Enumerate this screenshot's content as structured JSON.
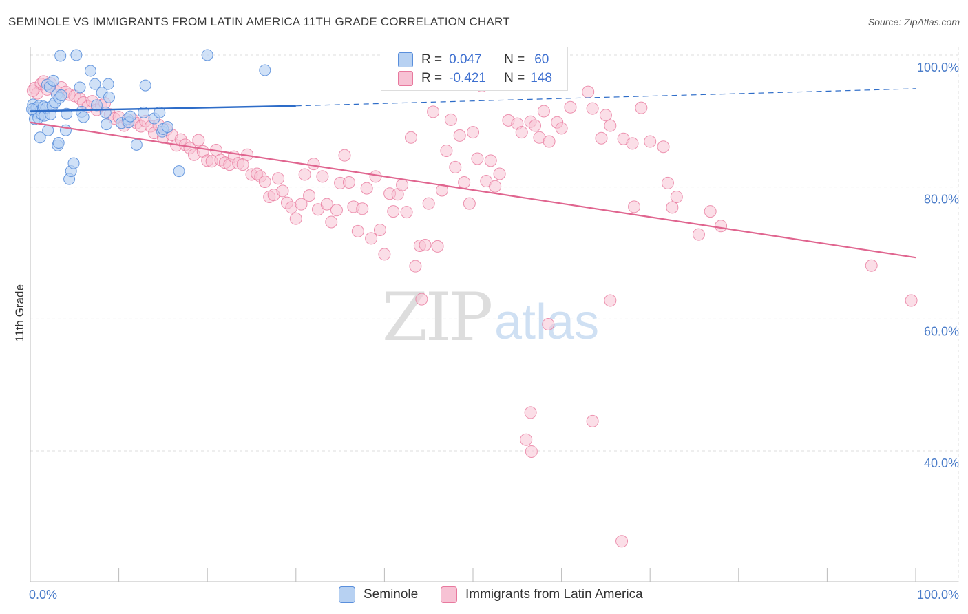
{
  "header": {
    "title": "SEMINOLE VS IMMIGRANTS FROM LATIN AMERICA 11TH GRADE CORRELATION CHART",
    "source": "Source: ZipAtlas.com"
  },
  "watermark": {
    "zip": "ZIP",
    "atlas": "atlas"
  },
  "legend": {
    "r_label": "R =",
    "n_label": "N =",
    "rows": [
      {
        "r": "0.047",
        "n": "60"
      },
      {
        "r": "-0.421",
        "n": "148"
      }
    ]
  },
  "colors": {
    "seminole_fill": "#b7d1f2",
    "seminole_stroke": "#5a8fdc",
    "seminole_line": "#2d6cc8",
    "latin_fill": "#f7c2d4",
    "latin_stroke": "#e8799e",
    "latin_line": "#e0658f",
    "grid": "#dddddd",
    "tick_text": "#4a7cc9"
  },
  "chart_data": {
    "type": "scatter",
    "title": "SEMINOLE VS IMMIGRANTS FROM LATIN AMERICA 11TH GRADE CORRELATION CHART",
    "xlabel": "",
    "ylabel": "11th Grade",
    "xlim": [
      0,
      100
    ],
    "ylim": [
      20,
      100
    ],
    "x_tick_labels": [
      "0.0%",
      "100.0%"
    ],
    "y_ticks": [
      100,
      80,
      60,
      40
    ],
    "y_tick_labels": [
      "100.0%",
      "80.0%",
      "60.0%",
      "40.0%"
    ],
    "legend_position": "top-center",
    "series": [
      {
        "name": "Seminole",
        "r": 0.047,
        "n": 60,
        "trend": {
          "x0": 0,
          "y0": 91.5,
          "x1": 30,
          "y1": 92.3,
          "dash_to_x": 100,
          "dash_to_y": 94.9
        },
        "points": [
          [
            0.3,
            92.5
          ],
          [
            0.4,
            91.5
          ],
          [
            0.5,
            90.3
          ],
          [
            0.6,
            91.8
          ],
          [
            0.7,
            92.0
          ],
          [
            0.8,
            91.2
          ],
          [
            0.9,
            90.5
          ],
          [
            1.0,
            92.3
          ],
          [
            1.1,
            87.5
          ],
          [
            1.2,
            91.6
          ],
          [
            1.3,
            91.0
          ],
          [
            1.5,
            92.2
          ],
          [
            1.6,
            90.8
          ],
          [
            1.8,
            92.0
          ],
          [
            1.9,
            95.5
          ],
          [
            2.0,
            88.6
          ],
          [
            2.2,
            95.2
          ],
          [
            2.3,
            91.0
          ],
          [
            2.5,
            92.3
          ],
          [
            2.6,
            96.1
          ],
          [
            2.8,
            92.8
          ],
          [
            3.0,
            94.0
          ],
          [
            3.1,
            86.3
          ],
          [
            3.2,
            86.7
          ],
          [
            3.3,
            93.5
          ],
          [
            3.4,
            99.9
          ],
          [
            3.5,
            93.9
          ],
          [
            4.0,
            88.6
          ],
          [
            4.1,
            91.1
          ],
          [
            4.4,
            81.2
          ],
          [
            4.6,
            82.4
          ],
          [
            4.9,
            83.6
          ],
          [
            5.2,
            100.0
          ],
          [
            5.6,
            95.1
          ],
          [
            5.8,
            91.4
          ],
          [
            6.0,
            90.6
          ],
          [
            6.8,
            97.6
          ],
          [
            7.3,
            95.6
          ],
          [
            7.5,
            92.4
          ],
          [
            8.1,
            94.3
          ],
          [
            8.5,
            91.3
          ],
          [
            8.6,
            89.5
          ],
          [
            8.8,
            95.6
          ],
          [
            8.9,
            93.6
          ],
          [
            10.3,
            89.7
          ],
          [
            11.0,
            90.3
          ],
          [
            11.1,
            89.8
          ],
          [
            11.3,
            90.7
          ],
          [
            12.0,
            86.4
          ],
          [
            12.8,
            91.3
          ],
          [
            13.0,
            95.4
          ],
          [
            14.0,
            90.4
          ],
          [
            14.6,
            91.3
          ],
          [
            14.9,
            88.4
          ],
          [
            15.0,
            88.8
          ],
          [
            15.5,
            89.1
          ],
          [
            16.8,
            82.4
          ],
          [
            20.0,
            100.0
          ],
          [
            26.5,
            97.7
          ],
          [
            0.2,
            91.8
          ]
        ]
      },
      {
        "name": "Immigrants from Latin America",
        "r": -0.421,
        "n": 148,
        "trend": {
          "x0": 0,
          "y0": 89.8,
          "x1": 100,
          "y1": 69.3
        },
        "points": [
          [
            0.5,
            95.0
          ],
          [
            0.8,
            94.2
          ],
          [
            1.2,
            95.6
          ],
          [
            1.5,
            96.0
          ],
          [
            1.9,
            94.8
          ],
          [
            2.3,
            95.7
          ],
          [
            2.9,
            94.5
          ],
          [
            3.5,
            95.1
          ],
          [
            4.0,
            94.4
          ],
          [
            4.4,
            94.0
          ],
          [
            5.0,
            93.8
          ],
          [
            5.6,
            93.4
          ],
          [
            6.0,
            92.8
          ],
          [
            6.5,
            92.2
          ],
          [
            7.0,
            93.0
          ],
          [
            7.5,
            91.7
          ],
          [
            8.0,
            92.4
          ],
          [
            8.4,
            92.7
          ],
          [
            9.0,
            91.0
          ],
          [
            9.5,
            90.4
          ],
          [
            10.0,
            90.6
          ],
          [
            10.6,
            89.3
          ],
          [
            11.0,
            89.9
          ],
          [
            11.6,
            90.2
          ],
          [
            12.0,
            89.7
          ],
          [
            12.5,
            89.2
          ],
          [
            13.0,
            90.0
          ],
          [
            13.6,
            89.2
          ],
          [
            14.0,
            88.2
          ],
          [
            14.5,
            89.4
          ],
          [
            15.0,
            87.5
          ],
          [
            15.4,
            88.7
          ],
          [
            16.0,
            87.9
          ],
          [
            16.5,
            86.3
          ],
          [
            17.0,
            87.2
          ],
          [
            17.5,
            86.4
          ],
          [
            18.0,
            85.9
          ],
          [
            18.5,
            84.9
          ],
          [
            19.0,
            87.1
          ],
          [
            19.5,
            85.4
          ],
          [
            20.0,
            84.0
          ],
          [
            20.5,
            83.9
          ],
          [
            21.0,
            85.6
          ],
          [
            21.5,
            84.1
          ],
          [
            22.0,
            83.7
          ],
          [
            22.5,
            83.4
          ],
          [
            23.0,
            84.6
          ],
          [
            23.5,
            83.6
          ],
          [
            24.0,
            83.4
          ],
          [
            24.5,
            84.9
          ],
          [
            25.0,
            81.9
          ],
          [
            25.6,
            82.0
          ],
          [
            26.0,
            81.6
          ],
          [
            26.5,
            80.8
          ],
          [
            27.0,
            78.5
          ],
          [
            27.5,
            78.8
          ],
          [
            28.0,
            81.3
          ],
          [
            28.5,
            79.4
          ],
          [
            29.0,
            77.6
          ],
          [
            29.5,
            76.9
          ],
          [
            30.0,
            75.2
          ],
          [
            30.6,
            77.4
          ],
          [
            31.0,
            81.9
          ],
          [
            31.5,
            78.7
          ],
          [
            32.0,
            83.5
          ],
          [
            32.5,
            76.6
          ],
          [
            33.0,
            81.6
          ],
          [
            33.5,
            77.4
          ],
          [
            34.0,
            74.7
          ],
          [
            34.6,
            76.5
          ],
          [
            35.0,
            80.6
          ],
          [
            35.5,
            84.8
          ],
          [
            36.0,
            80.7
          ],
          [
            36.5,
            77.0
          ],
          [
            37.0,
            73.3
          ],
          [
            37.5,
            76.7
          ],
          [
            38.0,
            79.8
          ],
          [
            38.5,
            72.2
          ],
          [
            39.0,
            81.6
          ],
          [
            39.5,
            73.5
          ],
          [
            40.0,
            69.8
          ],
          [
            40.6,
            79.0
          ],
          [
            41.0,
            76.3
          ],
          [
            41.5,
            78.9
          ],
          [
            42.0,
            80.3
          ],
          [
            42.5,
            76.2
          ],
          [
            43.0,
            87.5
          ],
          [
            43.5,
            68.0
          ],
          [
            44.0,
            71.1
          ],
          [
            44.6,
            71.2
          ],
          [
            45.0,
            77.5
          ],
          [
            45.5,
            91.4
          ],
          [
            46.0,
            71.0
          ],
          [
            46.5,
            79.5
          ],
          [
            47.0,
            85.5
          ],
          [
            47.5,
            90.2
          ],
          [
            48.0,
            83.0
          ],
          [
            48.5,
            87.8
          ],
          [
            49.0,
            80.7
          ],
          [
            49.6,
            77.5
          ],
          [
            50.0,
            88.3
          ],
          [
            50.5,
            84.3
          ],
          [
            51.0,
            95.3
          ],
          [
            51.5,
            80.9
          ],
          [
            52.0,
            84.0
          ],
          [
            52.5,
            80.1
          ],
          [
            53.0,
            82.0
          ],
          [
            54.0,
            90.1
          ],
          [
            55.0,
            89.6
          ],
          [
            55.5,
            88.3
          ],
          [
            56.5,
            89.9
          ],
          [
            57.0,
            89.3
          ],
          [
            57.5,
            87.5
          ],
          [
            58.0,
            91.5
          ],
          [
            58.6,
            86.9
          ],
          [
            59.5,
            89.8
          ],
          [
            60.0,
            88.9
          ],
          [
            61.0,
            92.1
          ],
          [
            63.0,
            94.4
          ],
          [
            63.5,
            91.9
          ],
          [
            64.5,
            87.4
          ],
          [
            65.0,
            90.9
          ],
          [
            65.5,
            89.3
          ],
          [
            67.0,
            87.3
          ],
          [
            68.0,
            86.6
          ],
          [
            69.0,
            92.0
          ],
          [
            70.0,
            86.9
          ],
          [
            71.5,
            86.1
          ],
          [
            72.0,
            80.6
          ],
          [
            73.0,
            78.5
          ],
          [
            72.5,
            76.9
          ],
          [
            68.2,
            77.0
          ],
          [
            76.8,
            76.3
          ],
          [
            78.0,
            74.1
          ],
          [
            75.5,
            72.8
          ],
          [
            95.0,
            68.1
          ],
          [
            99.5,
            62.8
          ],
          [
            65.5,
            62.8
          ],
          [
            58.5,
            59.2
          ],
          [
            56.5,
            45.8
          ],
          [
            56.0,
            41.7
          ],
          [
            56.6,
            39.9
          ],
          [
            63.5,
            44.5
          ],
          [
            66.8,
            26.3
          ],
          [
            44.2,
            63.0
          ],
          [
            0.3,
            94.6
          ]
        ]
      }
    ]
  },
  "bottom_legend": {
    "items": [
      "Seminole",
      "Immigrants from Latin America"
    ]
  }
}
